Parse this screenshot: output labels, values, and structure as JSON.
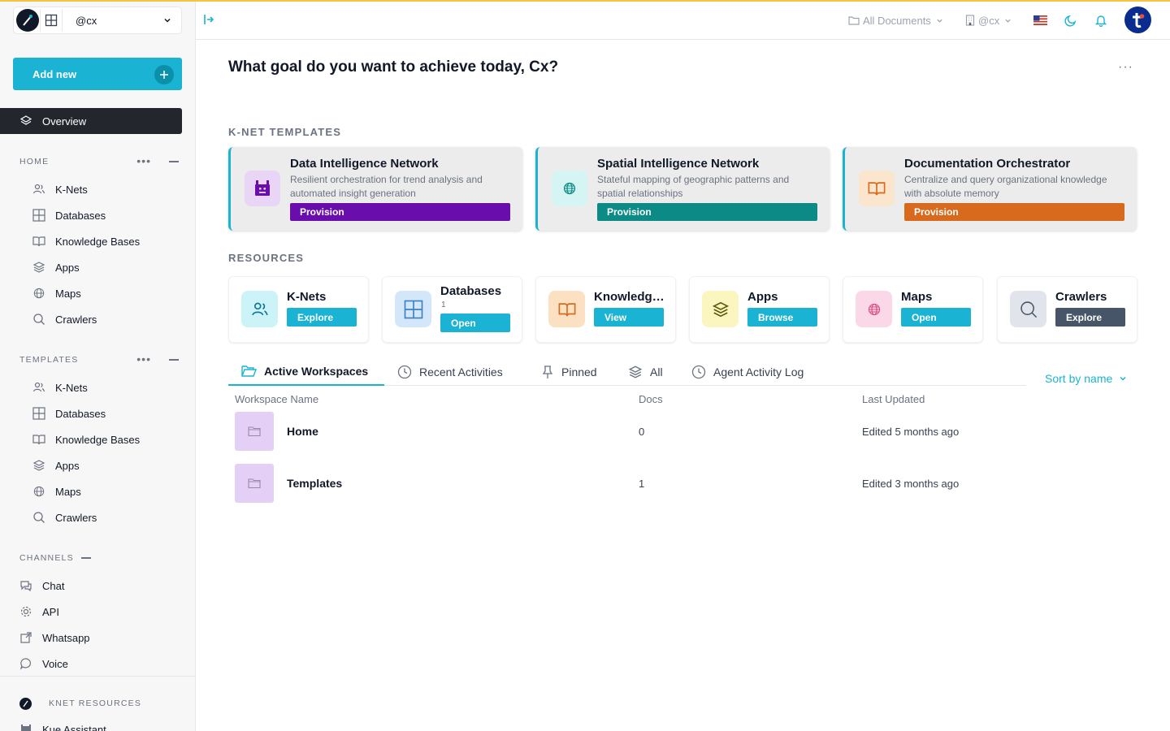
{
  "workspace": {
    "name": "@cx"
  },
  "sidebar": {
    "add_new": "Add new",
    "overview": "Overview",
    "home": {
      "title": "HOME",
      "items": [
        "K-Nets",
        "Databases",
        "Knowledge Bases",
        "Apps",
        "Maps",
        "Crawlers"
      ]
    },
    "templates": {
      "title": "TEMPLATES",
      "items": [
        "K-Nets",
        "Databases",
        "Knowledge Bases",
        "Apps",
        "Maps",
        "Crawlers"
      ]
    },
    "channels": {
      "title": "CHANNELS",
      "items": [
        "Chat",
        "API",
        "Whatsapp",
        "Voice"
      ]
    },
    "knet_resources": {
      "title": "KNET RESOURCES",
      "items": [
        "Kue Assistant"
      ]
    }
  },
  "topbar": {
    "documents": "All Documents",
    "org": "@cx",
    "flag": "🇺🇸"
  },
  "main": {
    "greeting": "What goal do you want to achieve today, Cx?",
    "more": "···",
    "templates_title": "K-NET TEMPLATES",
    "templates": [
      {
        "title": "Data Intelligence Network",
        "desc": "Resilient orchestration for trend analysis and automated insight generation",
        "button": "Provision",
        "color": "#6a0dad",
        "icon_bg": "#e9d5f5",
        "icon": "robot-icon"
      },
      {
        "title": "Spatial Intelligence Network",
        "desc": "Stateful mapping of geographic patterns and spatial relationships",
        "button": "Provision",
        "color": "#0b8a86",
        "icon_bg": "#d5f5f5",
        "icon": "globe-icon"
      },
      {
        "title": "Documentation Orchestrator",
        "desc": "Centralize and query organizational knowledge with absolute memory",
        "button": "Provision",
        "color": "#d76a1c",
        "icon_bg": "#fbe5cc",
        "icon": "book-icon"
      }
    ],
    "resources_title": "RESOURCES",
    "resources": [
      {
        "title": "K-Nets",
        "sub": "",
        "button": "Explore",
        "icon": "users-icon",
        "icon_bg": "#ccf3f7",
        "btn_color": "#1bb3d3"
      },
      {
        "title": "Databases",
        "sub": "1",
        "button": "Open",
        "icon": "grid-icon",
        "icon_bg": "#d3e6fa",
        "btn_color": "#1bb3d3"
      },
      {
        "title": "Knowledge Bases",
        "sub": "",
        "button": "View",
        "icon": "book-icon",
        "icon_bg": "#fbe0c2",
        "btn_color": "#1bb3d3"
      },
      {
        "title": "Apps",
        "sub": "",
        "button": "Browse",
        "icon": "layers-icon",
        "icon_bg": "#fbf6c0",
        "btn_color": "#1bb3d3"
      },
      {
        "title": "Maps",
        "sub": "",
        "button": "Open",
        "icon": "globe-icon",
        "icon_bg": "#fbd8e7",
        "btn_color": "#1bb3d3"
      },
      {
        "title": "Crawlers",
        "sub": "",
        "button": "Explore",
        "icon": "search-icon",
        "icon_bg": "#e1e4ea",
        "btn_color": "#475569"
      }
    ],
    "tabs": [
      "Active Workspaces",
      "Recent Activities",
      "Pinned",
      "All",
      "Agent Activity Log"
    ],
    "sort": "Sort by name",
    "table": {
      "headers": [
        "Workspace Name",
        "Docs",
        "Last Updated"
      ],
      "rows": [
        {
          "name": "Home",
          "docs": "0",
          "updated": "Edited 5 months ago"
        },
        {
          "name": "Templates",
          "docs": "1",
          "updated": "Edited 3 months ago"
        }
      ]
    }
  },
  "colors": {
    "accent": "#1bb3d3",
    "dark": "#23262d"
  }
}
